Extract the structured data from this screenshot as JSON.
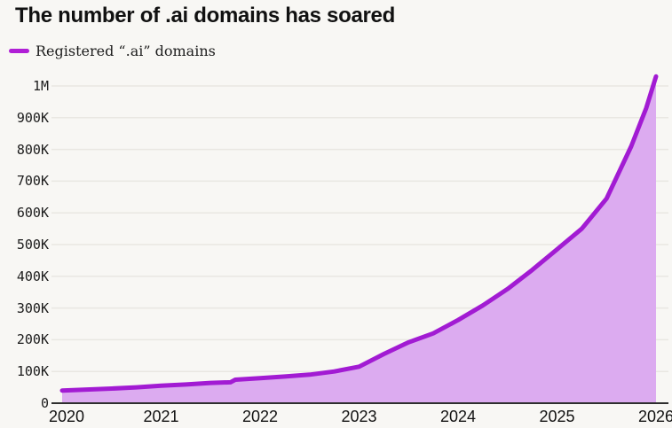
{
  "page": {
    "background_color": "#f8f7f4"
  },
  "header": {
    "title": "The number of .ai domains has soared"
  },
  "legend": {
    "label": "Registered “.ai” domains",
    "swatch_color": "#b01fd6"
  },
  "chart_data": {
    "type": "area",
    "title": "The number of .ai domains has soared",
    "xlabel": "",
    "ylabel": "",
    "xlim": [
      2020,
      2026
    ],
    "ylim": [
      0,
      1050000
    ],
    "grid": "horizontal",
    "legend_position": "top-left",
    "x_ticks": [
      2020,
      2021,
      2022,
      2023,
      2024,
      2025,
      2026
    ],
    "y_ticks": [
      {
        "value_k": 0,
        "label": "0"
      },
      {
        "value_k": 100,
        "label": "100K"
      },
      {
        "value_k": 200,
        "label": "200K"
      },
      {
        "value_k": 300,
        "label": "300K"
      },
      {
        "value_k": 400,
        "label": "400K"
      },
      {
        "value_k": 500,
        "label": "500K"
      },
      {
        "value_k": 600,
        "label": "600K"
      },
      {
        "value_k": 700,
        "label": "700K"
      },
      {
        "value_k": 800,
        "label": "800K"
      },
      {
        "value_k": 900,
        "label": "900K"
      },
      {
        "value_k": 1000,
        "label": "1M"
      }
    ],
    "series": [
      {
        "name": "Registered “.ai” domains",
        "x": [
          2020,
          2020.25,
          2020.5,
          2020.75,
          2021,
          2021.25,
          2021.5,
          2021.7,
          2021.75,
          2022,
          2022.25,
          2022.5,
          2022.75,
          2023,
          2023.25,
          2023.5,
          2023.75,
          2024,
          2024.25,
          2024.5,
          2024.75,
          2025,
          2025.25,
          2025.5,
          2025.75,
          2025.9,
          2026
        ],
        "values_thousands": [
          40,
          43,
          46,
          50,
          55,
          59,
          64,
          66,
          74,
          79,
          84,
          90,
          100,
          115,
          155,
          192,
          220,
          262,
          308,
          360,
          420,
          485,
          550,
          645,
          810,
          930,
          1030
        ]
      }
    ],
    "colors": {
      "line": "#a21bd3",
      "fill": "#dcabf0",
      "grid": "#e9e7e2",
      "axis": "#2e2e2e",
      "tick_text": "#1c1c1c"
    }
  }
}
